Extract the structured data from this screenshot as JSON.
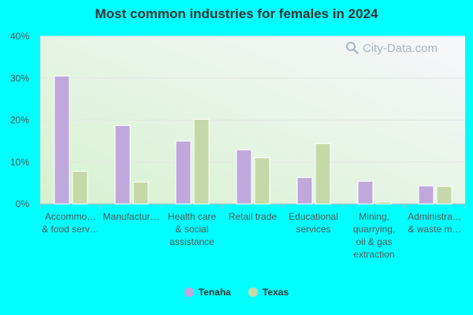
{
  "chart_data": {
    "type": "bar",
    "title": "Most common industries for females in 2024",
    "categories": [
      [
        "Accommo…",
        "& food serv…"
      ],
      [
        "Manufactur…"
      ],
      [
        "Health care",
        "& social",
        "assistance"
      ],
      [
        "Retail trade"
      ],
      [
        "Educational",
        "services"
      ],
      [
        "Mining,",
        "quarrying,",
        "oil & gas",
        "extraction"
      ],
      [
        "Administra…",
        "& waste m…"
      ]
    ],
    "series": [
      {
        "name": "Tenaha",
        "values": [
          30.5,
          18.7,
          15.0,
          12.9,
          6.3,
          5.4,
          4.3
        ],
        "color": "#c0a8dc"
      },
      {
        "name": "Texas",
        "values": [
          7.8,
          5.2,
          20.2,
          11.0,
          14.4,
          0.5,
          4.2
        ],
        "color": "#c5d9a8"
      }
    ],
    "ylim": [
      0,
      40
    ],
    "yticks": [
      "0%",
      "10%",
      "20%",
      "30%",
      "40%"
    ],
    "grid": true,
    "legend": "bottom"
  },
  "watermark": "City-Data.com"
}
